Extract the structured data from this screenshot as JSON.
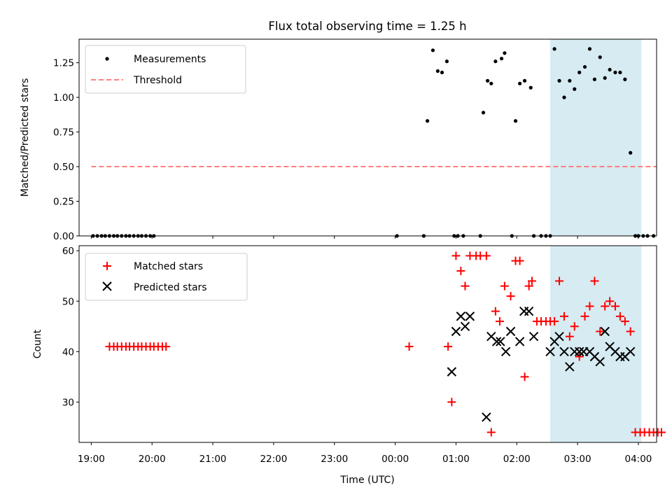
{
  "chart_data": [
    {
      "type": "scatter",
      "title": "Flux total observing time = 1.25 h",
      "ylabel": "Matched/Predicted stars",
      "ylim": [
        0,
        1.42
      ],
      "yticks": [
        0.0,
        0.25,
        0.5,
        0.75,
        1.0,
        1.25
      ],
      "ytick_labels": [
        "0.00",
        "0.25",
        "0.50",
        "0.75",
        "1.00",
        "1.25"
      ],
      "xlim": [
        -0.2,
        9.3
      ],
      "shaded_span": {
        "x": [
          7.55,
          9.05
        ],
        "color": "#add8e6"
      },
      "legend_position": "upper-left",
      "series": [
        {
          "name": "Measurements",
          "marker": "dot",
          "color": "#000000",
          "x": [
            0.03,
            0.1,
            0.17,
            0.23,
            0.3,
            0.37,
            0.43,
            0.5,
            0.57,
            0.63,
            0.7,
            0.77,
            0.83,
            0.9,
            0.97,
            1.03,
            5.03,
            5.47,
            5.53,
            5.62,
            5.7,
            5.77,
            5.85,
            5.97,
            6.03,
            6.12,
            6.4,
            6.45,
            6.52,
            6.58,
            6.65,
            6.75,
            6.8,
            6.92,
            6.98,
            7.05,
            7.13,
            7.23,
            7.28,
            7.4,
            7.48,
            7.55,
            7.62,
            7.7,
            7.78,
            7.87,
            7.95,
            8.03,
            8.12,
            8.2,
            8.28,
            8.37,
            8.45,
            8.53,
            8.62,
            8.7,
            8.78,
            8.87,
            8.95,
            9.0,
            9.08,
            9.15,
            9.25
          ],
          "y": [
            0,
            0,
            0,
            0,
            0,
            0,
            0,
            0,
            0,
            0,
            0,
            0,
            0,
            0,
            0,
            0,
            0,
            0,
            0.83,
            1.34,
            1.19,
            1.18,
            1.26,
            0,
            0,
            0,
            0,
            0.89,
            1.12,
            1.1,
            1.26,
            1.28,
            1.32,
            0,
            0.83,
            1.1,
            1.12,
            1.07,
            0,
            0,
            0,
            0,
            1.35,
            1.12,
            1.0,
            1.12,
            1.06,
            1.18,
            1.22,
            1.35,
            1.13,
            1.29,
            1.14,
            1.2,
            1.18,
            1.18,
            1.13,
            0.6,
            0,
            0,
            0,
            0,
            0
          ]
        },
        {
          "name": "Threshold",
          "marker": "dashed-line",
          "color": "#ff7f7f",
          "x": [
            0.0,
            9.3
          ],
          "y": [
            0.5,
            0.5
          ]
        }
      ]
    },
    {
      "type": "scatter",
      "xlabel": "Time (UTC)",
      "ylabel": "Count",
      "ylim": [
        22,
        61
      ],
      "yticks": [
        30,
        40,
        50,
        60
      ],
      "ytick_labels": [
        "30",
        "40",
        "50",
        "60"
      ],
      "xlim": [
        -0.2,
        9.3
      ],
      "xticks": [
        0,
        1,
        2,
        3,
        4,
        5,
        6,
        7,
        8,
        9
      ],
      "xtick_labels": [
        "19:00",
        "20:00",
        "21:00",
        "22:00",
        "23:00",
        "00:00",
        "01:00",
        "02:00",
        "03:00",
        "04:00"
      ],
      "shaded_span": {
        "x": [
          7.55,
          9.05
        ],
        "color": "#add8e6"
      },
      "legend_position": "upper-left",
      "series": [
        {
          "name": "Matched stars",
          "marker": "plus",
          "color": "#ff0000",
          "x": [
            0.3,
            0.37,
            0.43,
            0.5,
            0.57,
            0.63,
            0.7,
            0.77,
            0.83,
            0.9,
            0.97,
            1.03,
            1.1,
            1.17,
            1.23,
            5.23,
            5.87,
            5.93,
            6.0,
            6.08,
            6.15,
            6.23,
            6.33,
            6.4,
            6.5,
            6.58,
            6.65,
            6.72,
            6.8,
            6.9,
            6.98,
            7.05,
            7.13,
            7.2,
            7.25,
            7.33,
            7.4,
            7.48,
            7.55,
            7.62,
            7.7,
            7.78,
            7.87,
            7.95,
            8.03,
            8.12,
            8.2,
            8.28,
            8.37,
            8.45,
            8.53,
            8.62,
            8.7,
            8.78,
            8.87,
            8.95,
            9.03,
            9.1,
            9.18,
            9.25,
            9.32,
            9.38
          ],
          "y": [
            41,
            41,
            41,
            41,
            41,
            41,
            41,
            41,
            41,
            41,
            41,
            41,
            41,
            41,
            41,
            41,
            41,
            30,
            59,
            56,
            53,
            59,
            59,
            59,
            59,
            24,
            48,
            46,
            53,
            51,
            58,
            58,
            35,
            53,
            54,
            46,
            46,
            46,
            46,
            46,
            54,
            47,
            43,
            45,
            39,
            47,
            49,
            54,
            44,
            49,
            50,
            49,
            47,
            46,
            44,
            24,
            24,
            24,
            24,
            24,
            24,
            24
          ]
        },
        {
          "name": "Predicted stars",
          "marker": "x",
          "color": "#000000",
          "x": [
            5.93,
            6.0,
            6.08,
            6.15,
            6.23,
            6.5,
            6.58,
            6.67,
            6.73,
            6.82,
            6.9,
            7.05,
            7.12,
            7.2,
            7.28,
            7.55,
            7.62,
            7.7,
            7.78,
            7.87,
            7.95,
            8.03,
            8.1,
            8.2,
            8.28,
            8.37,
            8.45,
            8.53,
            8.62,
            8.7,
            8.78,
            8.87
          ],
          "y": [
            36,
            44,
            47,
            45,
            47,
            27,
            43,
            42,
            42,
            40,
            44,
            42,
            48,
            48,
            43,
            40,
            42,
            43,
            40,
            37,
            40,
            40,
            40,
            40,
            39,
            38,
            44,
            41,
            40,
            39,
            39,
            40
          ]
        }
      ]
    }
  ]
}
